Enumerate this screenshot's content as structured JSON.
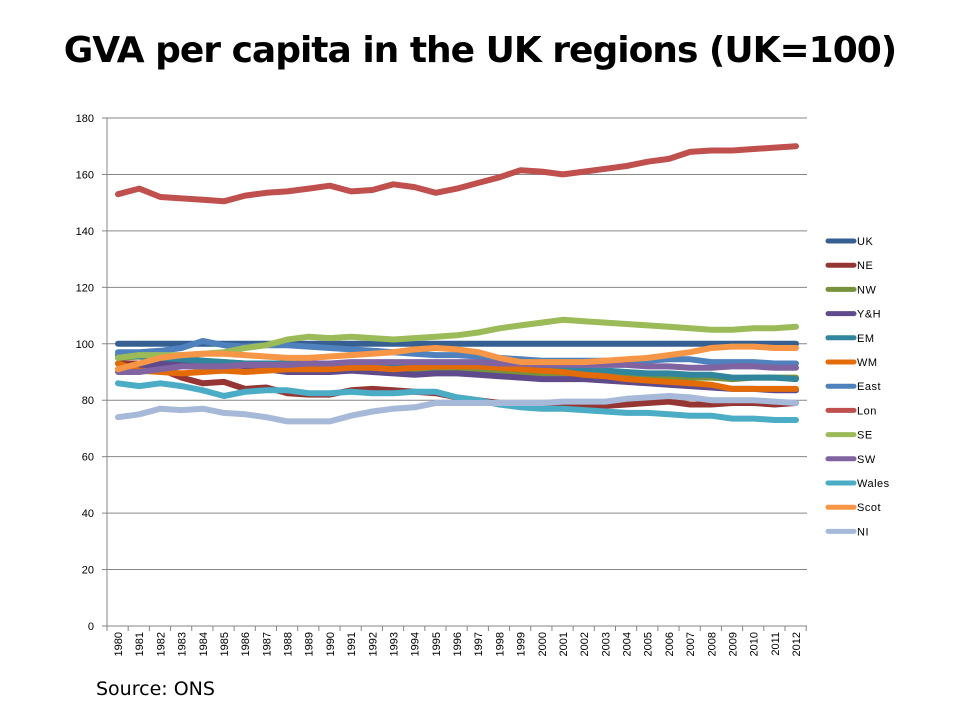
{
  "title": "GVA per capita in the UK regions (UK=100)",
  "source": "Source: ONS",
  "chart_data": {
    "type": "line",
    "title": "GVA per capita in the UK regions (UK=100)",
    "xlabel": "",
    "ylabel": "",
    "ylim": [
      0,
      180
    ],
    "yticks": [
      0,
      20,
      40,
      60,
      80,
      100,
      120,
      140,
      160,
      180
    ],
    "grid": true,
    "legend_position": "right",
    "x": [
      1980,
      1981,
      1982,
      1983,
      1984,
      1985,
      1986,
      1987,
      1988,
      1989,
      1990,
      1991,
      1992,
      1993,
      1994,
      1995,
      1996,
      1997,
      1998,
      1999,
      2000,
      2001,
      2002,
      2003,
      2004,
      2005,
      2006,
      2007,
      2008,
      2009,
      2010,
      2011,
      2012
    ],
    "series": [
      {
        "name": "UK",
        "color": "#376092",
        "values": [
          100,
          100,
          100,
          100,
          100,
          100,
          100,
          100,
          100,
          100,
          100,
          100,
          100,
          100,
          100,
          100,
          100,
          100,
          100,
          100,
          100,
          100,
          100,
          100,
          100,
          100,
          100,
          100,
          100,
          100,
          100,
          100,
          100
        ]
      },
      {
        "name": "NE",
        "color": "#963634",
        "values": [
          93,
          93,
          91,
          88,
          86,
          86.5,
          84,
          84.5,
          82.5,
          82,
          82,
          83.5,
          84,
          83.5,
          83,
          82.5,
          81,
          80,
          79,
          79,
          78.5,
          78.5,
          78.5,
          78,
          78.5,
          79,
          79.5,
          78.5,
          78.5,
          79,
          79,
          78.5,
          79
        ]
      },
      {
        "name": "NW",
        "color": "#76923C",
        "values": [
          95,
          95.5,
          95,
          95,
          94,
          93.5,
          93,
          92.5,
          91.5,
          91,
          91,
          91,
          90.5,
          90.5,
          90,
          90.5,
          90.5,
          91,
          90.5,
          90,
          89.5,
          89.5,
          89.5,
          89.5,
          89,
          88.5,
          88.5,
          88,
          88,
          87.5,
          88,
          88,
          88
        ]
      },
      {
        "name": "Y&H",
        "color": "#5F4A8B",
        "values": [
          91,
          92,
          93,
          94,
          93.5,
          93,
          92,
          91,
          90,
          90,
          90,
          90.5,
          90,
          89.5,
          89,
          89.5,
          89.5,
          89,
          88.5,
          88,
          87.5,
          87.5,
          87.5,
          87,
          86.5,
          86,
          85.5,
          85,
          84.5,
          84,
          84,
          83.5,
          83.5
        ]
      },
      {
        "name": "EM",
        "color": "#31859C",
        "values": [
          96,
          95.5,
          95,
          94.5,
          94,
          93.5,
          93,
          93,
          93,
          93,
          93,
          93,
          93,
          93,
          92.5,
          92.5,
          92.5,
          92,
          92,
          91.5,
          91,
          91,
          90.5,
          90.5,
          90,
          89.5,
          89.5,
          89,
          89,
          88,
          88,
          88,
          87.5
        ]
      },
      {
        "name": "WM",
        "color": "#E36C09",
        "values": [
          93,
          90.5,
          90,
          89.5,
          90,
          90.5,
          90,
          90.5,
          91,
          91,
          91,
          91.5,
          91.5,
          91,
          91.5,
          92,
          92,
          92,
          91.5,
          91,
          90.5,
          90,
          89,
          88.5,
          87.5,
          87,
          86.5,
          86,
          85.5,
          84,
          84,
          84,
          84
        ]
      },
      {
        "name": "East",
        "color": "#4F81BD",
        "values": [
          97,
          97,
          97.5,
          98.5,
          101,
          99.5,
          99,
          99.5,
          99.5,
          99,
          98.5,
          98,
          97.5,
          97,
          96.5,
          96,
          96,
          95.5,
          95,
          94.5,
          94,
          94,
          94,
          94,
          94,
          94,
          94.5,
          94.5,
          93.5,
          93.5,
          93.5,
          93,
          93
        ]
      },
      {
        "name": "Lon",
        "color": "#C0504D",
        "values": [
          153,
          155,
          152,
          151.5,
          151,
          150.5,
          152.5,
          153.5,
          154,
          155,
          156,
          154,
          154.5,
          156.5,
          155.5,
          153.5,
          155,
          157,
          159,
          161.5,
          161,
          160,
          161,
          162,
          163,
          164.5,
          165.5,
          168,
          168.5,
          168.5,
          169,
          169.5,
          170
        ]
      },
      {
        "name": "SE",
        "color": "#9BBB59",
        "values": [
          95,
          96,
          96,
          96,
          96.5,
          97,
          98.5,
          99.5,
          101.5,
          102.5,
          102,
          102.5,
          102,
          101.5,
          102,
          102.5,
          103,
          104,
          105.5,
          106.5,
          107.5,
          108.5,
          108,
          107.5,
          107,
          106.5,
          106,
          105.5,
          105,
          105,
          105.5,
          105.5,
          106
        ]
      },
      {
        "name": "SW",
        "color": "#8064A2",
        "values": [
          90,
          90,
          91,
          92,
          92,
          92,
          92.5,
          92.5,
          92.5,
          93,
          93,
          93.5,
          93.5,
          93.5,
          93.5,
          93.5,
          93.5,
          93.5,
          93,
          93,
          92.5,
          92.5,
          92.5,
          92.5,
          92.5,
          92,
          92,
          91.5,
          91.5,
          92,
          92,
          91.5,
          91.5
        ]
      },
      {
        "name": "Wales",
        "color": "#4BACC6",
        "values": [
          86,
          85,
          86,
          85,
          83.5,
          81.5,
          83,
          83.5,
          83.5,
          82.5,
          82.5,
          83,
          82.5,
          82.5,
          83,
          83,
          81,
          80,
          78.5,
          77.5,
          77,
          77,
          76.5,
          76,
          75.5,
          75.5,
          75,
          74.5,
          74.5,
          73.5,
          73.5,
          73,
          73
        ]
      },
      {
        "name": "Scot",
        "color": "#F79646",
        "values": [
          91,
          93,
          95,
          96,
          96.5,
          96.5,
          96,
          95.5,
          95,
          95,
          95.5,
          96,
          96.5,
          97,
          98,
          98.5,
          98,
          97,
          95,
          93.5,
          93.5,
          93.5,
          93.5,
          94,
          94.5,
          95,
          96,
          97,
          98.5,
          99,
          99,
          98.5,
          98.5
        ]
      },
      {
        "name": "NI",
        "color": "#A6B9D8",
        "values": [
          74,
          75,
          77,
          76.5,
          77,
          75.5,
          75,
          74,
          72.5,
          72.5,
          72.5,
          74.5,
          76,
          77,
          77.5,
          79,
          79,
          79,
          79,
          79,
          79,
          79.5,
          79.5,
          79.5,
          80.5,
          81,
          81.5,
          81,
          80,
          80,
          80,
          79.5,
          79
        ]
      }
    ]
  }
}
